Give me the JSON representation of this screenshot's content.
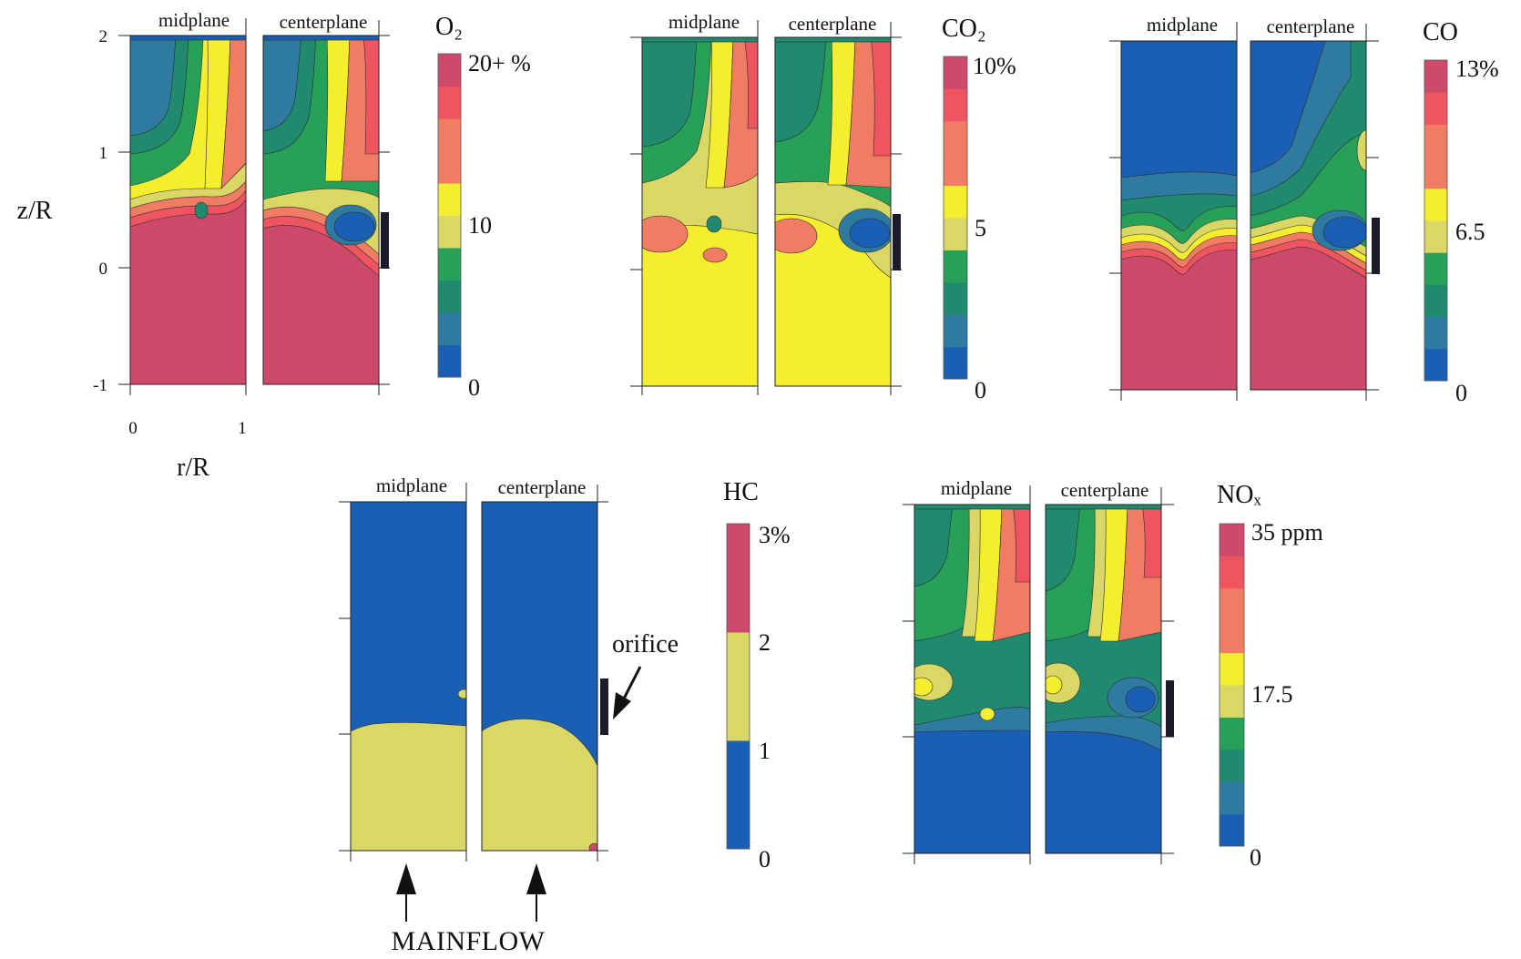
{
  "colors": {
    "blue": "#1a5fb4",
    "steel_blue": "#2e7aa0",
    "teal": "#1f8a6e",
    "green": "#27a05a",
    "khaki": "#d9d866",
    "yellow": "#f4ee2e",
    "salmon": "#f07d63",
    "red": "#ef5560",
    "crimson": "#cd4a6b",
    "orifice": "#1b1b2a"
  },
  "labels": {
    "midplane": "midplane",
    "centerplane": "centerplane",
    "y_axis_title": "z/R",
    "x_axis_title": "r/R",
    "orifice_note": "orifice",
    "mainflow_note": "MAINFLOW"
  },
  "chart_data": [
    {
      "type": "heatmap",
      "species": "O2",
      "title": "O₂",
      "panels": [
        "midplane",
        "centerplane"
      ],
      "xlabel": "r/R",
      "ylabel": "z/R",
      "x_ticks": [
        "0",
        "1"
      ],
      "y_ticks": [
        "2",
        "1",
        "0",
        "-1"
      ],
      "xlim": [
        0,
        1
      ],
      "ylim": [
        -1,
        2
      ],
      "colorbar": {
        "labels": [
          "20+ %",
          "10",
          "0"
        ],
        "min": 0,
        "max": 20,
        "levels": 10
      }
    },
    {
      "type": "heatmap",
      "species": "CO2",
      "title": "CO₂",
      "panels": [
        "midplane",
        "centerplane"
      ],
      "xlim": [
        0,
        1
      ],
      "ylim": [
        -1,
        2
      ],
      "colorbar": {
        "labels": [
          "10%",
          "5",
          "0"
        ],
        "min": 0,
        "max": 10,
        "levels": 10
      }
    },
    {
      "type": "heatmap",
      "species": "CO",
      "title": "CO",
      "panels": [
        "midplane",
        "centerplane"
      ],
      "xlim": [
        0,
        1
      ],
      "ylim": [
        -1,
        2
      ],
      "colorbar": {
        "labels": [
          "13%",
          "6.5",
          "0"
        ],
        "min": 0,
        "max": 13,
        "levels": 10
      }
    },
    {
      "type": "heatmap",
      "species": "HC",
      "title": "HC",
      "panels": [
        "midplane",
        "centerplane"
      ],
      "xlim": [
        0,
        1
      ],
      "ylim": [
        -1,
        2
      ],
      "colorbar": {
        "labels": [
          "3%",
          "2",
          "1",
          "0"
        ],
        "min": 0,
        "max": 3,
        "levels": 3
      }
    },
    {
      "type": "heatmap",
      "species": "NOx",
      "title": "NOₓ",
      "panels": [
        "midplane",
        "centerplane"
      ],
      "xlim": [
        0,
        1
      ],
      "ylim": [
        -1,
        2
      ],
      "colorbar": {
        "labels": [
          "35 ppm",
          "17.5",
          "0"
        ],
        "min": 0,
        "max": 35,
        "levels": 10
      }
    }
  ]
}
